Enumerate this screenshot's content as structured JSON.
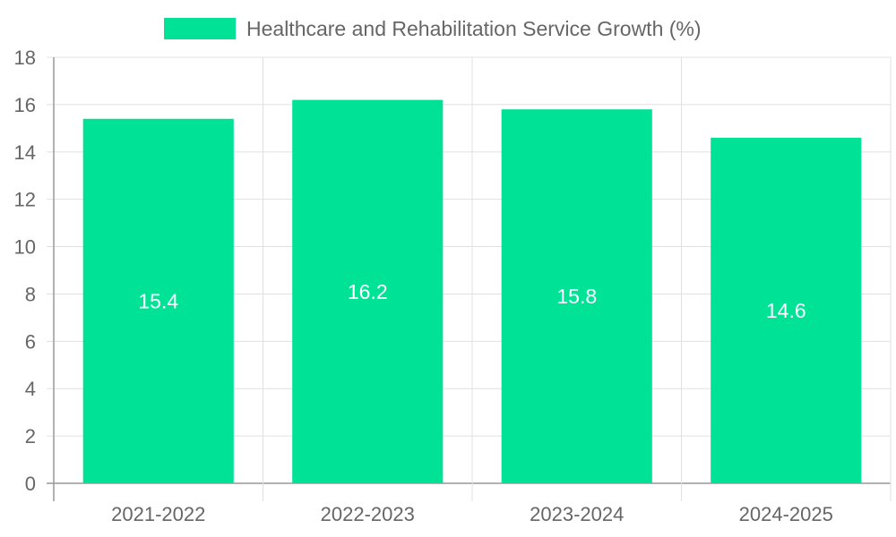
{
  "chart_data": {
    "type": "bar",
    "categories": [
      "2021-2022",
      "2022-2023",
      "2023-2024",
      "2024-2025"
    ],
    "series": [
      {
        "name": "Healthcare and Rehabilitation Service Growth (%)",
        "values": [
          15.4,
          16.2,
          15.8,
          14.6
        ],
        "color": "#00e396"
      }
    ],
    "ylim": [
      0,
      18
    ],
    "yticks": [
      "0",
      "2",
      "4",
      "6",
      "8",
      "10",
      "12",
      "14",
      "16",
      "18"
    ],
    "data_labels": [
      "15.4",
      "16.2",
      "15.8",
      "14.6"
    ],
    "grid": true,
    "legend_position": "top"
  }
}
